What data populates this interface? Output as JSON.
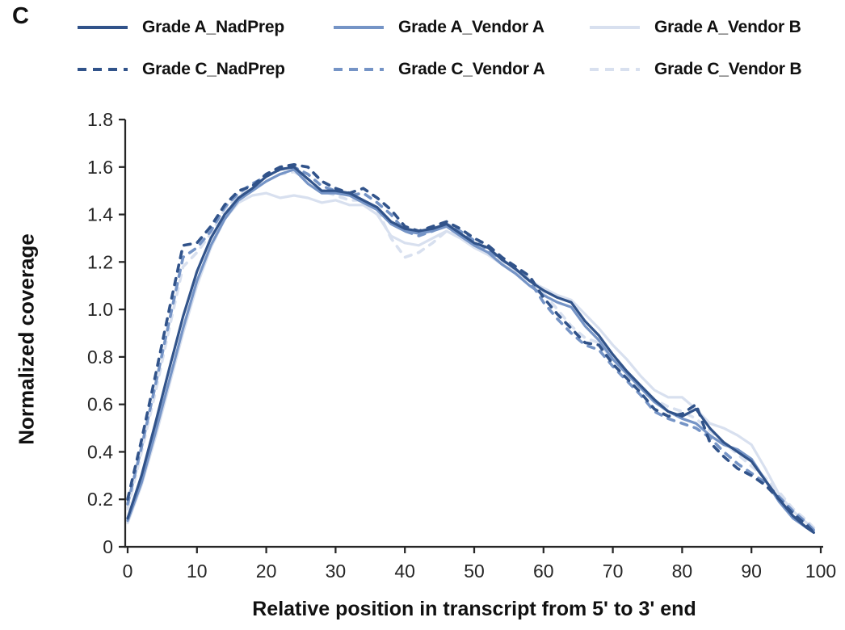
{
  "panel_label": "C",
  "axis_color": "#262626",
  "chart_data": {
    "type": "line",
    "title": "",
    "xlabel": "Relative position in transcript from 5' to 3' end",
    "ylabel": "Normalized coverage",
    "xlim": [
      0,
      100
    ],
    "ylim": [
      0,
      1.8
    ],
    "grid": false,
    "legend_position": "top",
    "x_ticks": [
      0,
      10,
      20,
      30,
      40,
      50,
      60,
      70,
      80,
      90,
      100
    ],
    "y_ticks": [
      {
        "v": 0.0,
        "label": "0"
      },
      {
        "v": 0.2,
        "label": "0.2"
      },
      {
        "v": 0.4,
        "label": "0.4"
      },
      {
        "v": 0.6,
        "label": "0.6"
      },
      {
        "v": 0.8,
        "label": "0.8"
      },
      {
        "v": 1.0,
        "label": "1.0"
      },
      {
        "v": 1.2,
        "label": "1.2"
      },
      {
        "v": 1.4,
        "label": "1.4"
      },
      {
        "v": 1.6,
        "label": "1.6"
      },
      {
        "v": 1.8,
        "label": "1.8"
      }
    ],
    "x": [
      0,
      2,
      4,
      6,
      8,
      10,
      12,
      14,
      16,
      18,
      20,
      22,
      24,
      26,
      28,
      30,
      32,
      34,
      36,
      38,
      40,
      42,
      44,
      46,
      48,
      50,
      52,
      54,
      56,
      58,
      60,
      62,
      64,
      66,
      68,
      70,
      72,
      74,
      76,
      78,
      80,
      82,
      84,
      86,
      88,
      90,
      92,
      94,
      96,
      98,
      99
    ],
    "series": [
      {
        "name": "Grade A_NadPrep",
        "color": "#31538a",
        "dash": "solid",
        "values": [
          0.12,
          0.3,
          0.52,
          0.75,
          0.97,
          1.16,
          1.3,
          1.4,
          1.47,
          1.51,
          1.56,
          1.59,
          1.6,
          1.55,
          1.5,
          1.5,
          1.49,
          1.46,
          1.43,
          1.37,
          1.34,
          1.33,
          1.34,
          1.36,
          1.32,
          1.28,
          1.26,
          1.21,
          1.17,
          1.12,
          1.08,
          1.05,
          1.03,
          0.95,
          0.89,
          0.81,
          0.74,
          0.68,
          0.62,
          0.57,
          0.55,
          0.58,
          0.5,
          0.44,
          0.4,
          0.36,
          0.28,
          0.2,
          0.13,
          0.08,
          0.06
        ]
      },
      {
        "name": "Grade A_Vendor A",
        "color": "#7594c6",
        "dash": "solid",
        "values": [
          0.11,
          0.27,
          0.48,
          0.7,
          0.92,
          1.12,
          1.27,
          1.38,
          1.46,
          1.5,
          1.54,
          1.57,
          1.59,
          1.53,
          1.49,
          1.49,
          1.48,
          1.45,
          1.42,
          1.36,
          1.33,
          1.32,
          1.33,
          1.35,
          1.31,
          1.27,
          1.24,
          1.19,
          1.15,
          1.1,
          1.06,
          1.03,
          1.01,
          0.93,
          0.87,
          0.79,
          0.73,
          0.67,
          0.61,
          0.57,
          0.54,
          0.52,
          0.47,
          0.43,
          0.41,
          0.37,
          0.28,
          0.19,
          0.12,
          0.08,
          0.07
        ]
      },
      {
        "name": "Grade A_Vendor B",
        "color": "#d8e0ef",
        "dash": "solid",
        "values": [
          0.1,
          0.26,
          0.46,
          0.68,
          0.9,
          1.1,
          1.26,
          1.38,
          1.45,
          1.48,
          1.49,
          1.47,
          1.48,
          1.47,
          1.45,
          1.46,
          1.44,
          1.44,
          1.4,
          1.31,
          1.28,
          1.27,
          1.3,
          1.33,
          1.3,
          1.26,
          1.23,
          1.19,
          1.16,
          1.12,
          1.09,
          1.06,
          1.04,
          0.98,
          0.92,
          0.85,
          0.79,
          0.72,
          0.66,
          0.63,
          0.63,
          0.58,
          0.52,
          0.5,
          0.47,
          0.43,
          0.33,
          0.22,
          0.15,
          0.1,
          0.08
        ]
      },
      {
        "name": "Grade C_NadPrep",
        "color": "#31538a",
        "dash": "dashed",
        "values": [
          0.2,
          0.45,
          0.72,
          1.0,
          1.27,
          1.28,
          1.35,
          1.44,
          1.5,
          1.52,
          1.57,
          1.6,
          1.61,
          1.6,
          1.54,
          1.51,
          1.49,
          1.51,
          1.47,
          1.42,
          1.35,
          1.33,
          1.35,
          1.37,
          1.34,
          1.3,
          1.27,
          1.22,
          1.18,
          1.14,
          1.05,
          0.98,
          0.92,
          0.86,
          0.85,
          0.77,
          0.71,
          0.65,
          0.58,
          0.55,
          0.56,
          0.6,
          0.44,
          0.38,
          0.33,
          0.3,
          0.26,
          0.2,
          0.14,
          0.09,
          0.06
        ]
      },
      {
        "name": "Grade C_Vendor A",
        "color": "#7594c6",
        "dash": "dashed",
        "values": [
          0.18,
          0.42,
          0.68,
          0.95,
          1.22,
          1.26,
          1.33,
          1.43,
          1.49,
          1.53,
          1.56,
          1.59,
          1.6,
          1.57,
          1.52,
          1.5,
          1.48,
          1.49,
          1.45,
          1.4,
          1.33,
          1.31,
          1.33,
          1.36,
          1.33,
          1.29,
          1.25,
          1.21,
          1.17,
          1.12,
          1.03,
          0.96,
          0.9,
          0.85,
          0.83,
          0.76,
          0.7,
          0.64,
          0.57,
          0.54,
          0.52,
          0.5,
          0.46,
          0.4,
          0.35,
          0.31,
          0.27,
          0.21,
          0.15,
          0.1,
          0.07
        ]
      },
      {
        "name": "Grade C_Vendor B",
        "color": "#d8e0ef",
        "dash": "dashed",
        "values": [
          0.16,
          0.4,
          0.65,
          0.92,
          1.18,
          1.24,
          1.32,
          1.42,
          1.48,
          1.51,
          1.54,
          1.57,
          1.58,
          1.55,
          1.5,
          1.48,
          1.46,
          1.46,
          1.42,
          1.3,
          1.22,
          1.24,
          1.28,
          1.33,
          1.31,
          1.27,
          1.24,
          1.2,
          1.16,
          1.13,
          1.07,
          1.0,
          0.93,
          0.88,
          0.86,
          0.79,
          0.73,
          0.67,
          0.62,
          0.59,
          0.57,
          0.54,
          0.49,
          0.44,
          0.39,
          0.34,
          0.29,
          0.23,
          0.16,
          0.11,
          0.08
        ]
      }
    ]
  }
}
